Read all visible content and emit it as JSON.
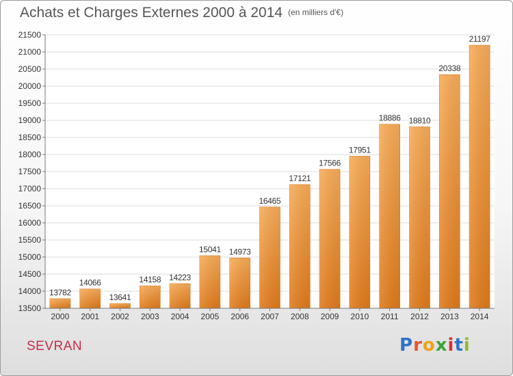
{
  "header": {
    "title": "Achats et Charges Externes 2000 à 2014",
    "unit_note": "(en milliers d'€)"
  },
  "footer": {
    "town": "SEVRAN",
    "logo_text": "Proxiti"
  },
  "colors": {
    "bar_light": "#f7a852",
    "bar_dark": "#e17a1a",
    "title": "#555555",
    "town": "#c8294a"
  },
  "chart_data": {
    "type": "bar",
    "title": "Achats et Charges Externes 2000 à 2014",
    "subtitle": "(en milliers d'€)",
    "xlabel": "",
    "ylabel": "",
    "categories": [
      "2000",
      "2001",
      "2002",
      "2003",
      "2004",
      "2005",
      "2006",
      "2007",
      "2008",
      "2009",
      "2010",
      "2011",
      "2012",
      "2013",
      "2014"
    ],
    "values": [
      13782,
      14066,
      13641,
      14158,
      14223,
      15041,
      14973,
      16465,
      17121,
      17566,
      17951,
      18886,
      18810,
      20338,
      21197
    ],
    "data_labels": [
      "13782",
      "14066",
      "13641",
      "14158",
      "14223",
      "15041",
      "14973",
      "16465",
      "17121",
      "17566",
      "17951",
      "18886",
      "18810",
      "20338",
      "21197"
    ],
    "ylim": [
      13500,
      21500
    ],
    "yticks": [
      13500,
      14000,
      14500,
      15000,
      15500,
      16000,
      16500,
      17000,
      17500,
      18000,
      18500,
      19000,
      19500,
      20000,
      20500,
      21000,
      21500
    ],
    "ytick_labels": [
      "13500",
      "14000",
      "14500",
      "15000",
      "15500",
      "16000",
      "16500",
      "17000",
      "17500",
      "18000",
      "18500",
      "19000",
      "19500",
      "20000",
      "20500",
      "21000",
      "21500"
    ],
    "grid": true,
    "legend": "none"
  }
}
